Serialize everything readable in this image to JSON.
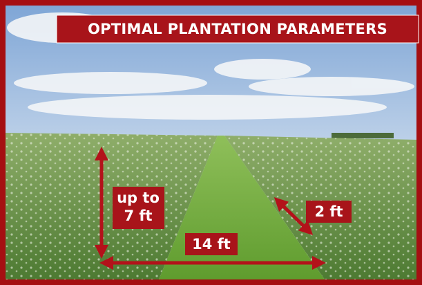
{
  "title": "OPTIMAL PLANTATION PARAMETERS",
  "annotations": {
    "height": [
      "up to",
      "7 ft"
    ],
    "row_width": "14 ft",
    "plant_spacing": "2 ft"
  }
}
